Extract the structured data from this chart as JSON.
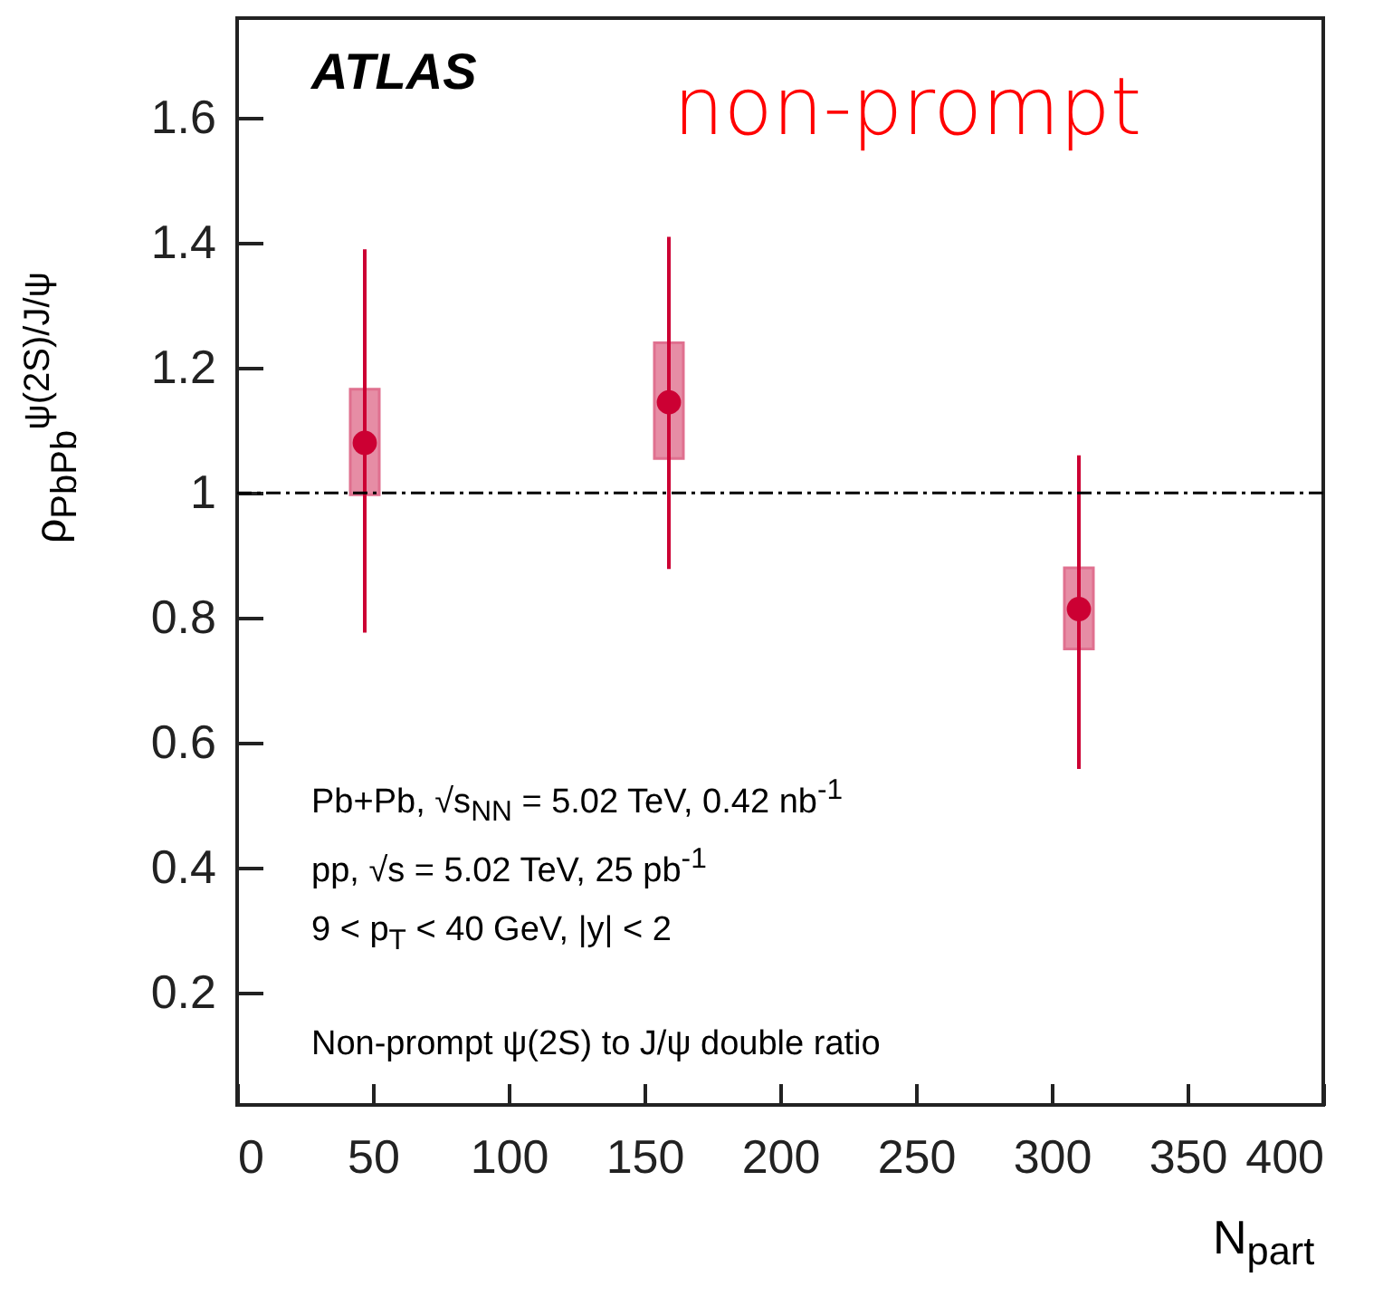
{
  "chart_data": {
    "type": "scatter",
    "xlabel": "N$_{part}$",
    "ylabel": "ρ$_{PbPb}$$^{ψ(2S)/J/ψ}$",
    "xlim": [
      0,
      400
    ],
    "xticks": [
      0,
      50,
      100,
      150,
      200,
      250,
      300,
      350,
      400
    ],
    "ylim": [
      0.02,
      1.76
    ],
    "yticks": [
      0.2,
      0.4,
      0.6,
      0.8,
      1,
      1.2,
      1.4,
      1.6
    ],
    "grid": false,
    "marker": "circle",
    "series": [
      {
        "type": "bar",
        "color": "#e0708f",
        "x": [
          47,
          159,
          310
        ],
        "base": [
          0.997,
          1.055,
          0.75
        ],
        "values": [
          0.169,
          0.185,
          0.13
        ]
      },
      {
        "color": "#cc0033",
        "x": [
          47,
          159,
          310
        ],
        "values": [
          1.08,
          1.145,
          0.814
        ],
        "errors": [
          [
            0.776,
            1.39
          ],
          [
            0.878,
            1.41
          ],
          [
            0.558,
            1.06
          ]
        ]
      }
    ],
    "ref_lines": [
      {
        "axis": "y",
        "value": 1,
        "color": "#000000",
        "line_style": "dashdot"
      }
    ],
    "annotations": [
      "ATLAS",
      "non-prompt",
      "Pb+Pb, √s$_{NN}$ = 5.02 TeV, 0.42 nb$^{-1}$",
      "pp, √s = 5.02 TeV, 25 pb$^{-1}$",
      "9 < p$_{T}$ < 40 GeV, |y| < 2",
      "Non-prompt ψ(2S) to J/ψ double ratio"
    ]
  }
}
